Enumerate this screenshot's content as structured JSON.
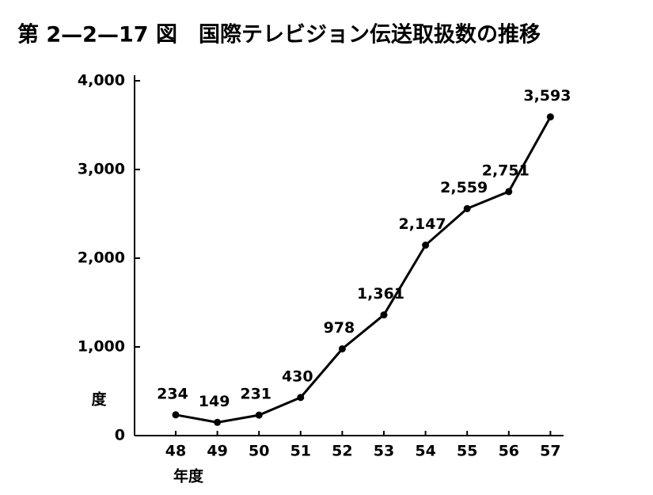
{
  "chart_data": {
    "type": "line",
    "title": "第 2—2—17 図　国際テレビジョン伝送取扱数の推移",
    "y_label": "度",
    "x_label": "年度",
    "categories": [
      "48",
      "49",
      "50",
      "51",
      "52",
      "53",
      "54",
      "55",
      "56",
      "57"
    ],
    "values": [
      234,
      149,
      231,
      430,
      978,
      1361,
      2147,
      2559,
      2751,
      3593
    ],
    "value_labels": [
      "234",
      "149",
      "231",
      "430",
      "978",
      "1,361",
      "2,147",
      "2,559",
      "2,751",
      "3,593"
    ],
    "color": "#000000",
    "ylim": [
      0,
      4000
    ],
    "yticks": [
      0,
      {
        "value": 1000,
        "label": "1,000"
      },
      {
        "value": 2000,
        "label": "2,000"
      },
      {
        "value": 3000,
        "label": "3,000"
      },
      {
        "value": 4000,
        "label": "4,000"
      }
    ],
    "grid": false
  }
}
